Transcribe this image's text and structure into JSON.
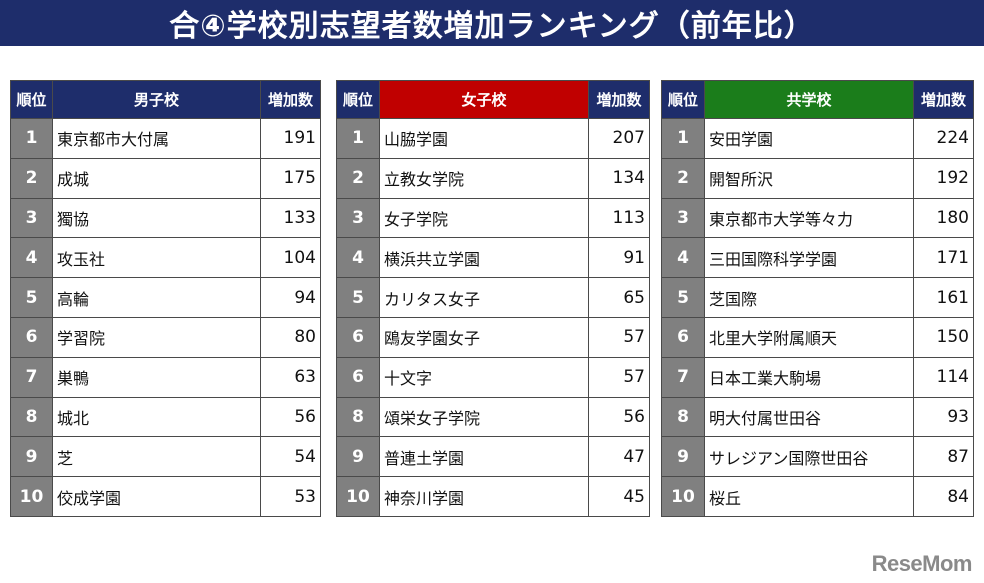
{
  "title": "合④学校別志望者数増加ランキング（前年比）",
  "header": {
    "rank": "順位",
    "increase": "増加数"
  },
  "colors": {
    "title_bg": "#1e2d6b",
    "boys": "#1e2d6b",
    "girls": "#c00000",
    "coed": "#1b7d1b",
    "rank_cell": "#808080"
  },
  "tables": {
    "boys": {
      "category": "男子校",
      "rows": [
        {
          "rank": "1",
          "school": "東京都市大付属",
          "increase": "191"
        },
        {
          "rank": "2",
          "school": "成城",
          "increase": "175"
        },
        {
          "rank": "3",
          "school": "獨協",
          "increase": "133"
        },
        {
          "rank": "4",
          "school": "攻玉社",
          "increase": "104"
        },
        {
          "rank": "5",
          "school": "高輪",
          "increase": "94"
        },
        {
          "rank": "6",
          "school": "学習院",
          "increase": "80"
        },
        {
          "rank": "7",
          "school": "巣鴨",
          "increase": "63"
        },
        {
          "rank": "8",
          "school": "城北",
          "increase": "56"
        },
        {
          "rank": "9",
          "school": "芝",
          "increase": "54"
        },
        {
          "rank": "10",
          "school": "佼成学園",
          "increase": "53"
        }
      ]
    },
    "girls": {
      "category": "女子校",
      "rows": [
        {
          "rank": "1",
          "school": "山脇学園",
          "increase": "207"
        },
        {
          "rank": "2",
          "school": "立教女学院",
          "increase": "134"
        },
        {
          "rank": "3",
          "school": "女子学院",
          "increase": "113"
        },
        {
          "rank": "4",
          "school": "横浜共立学園",
          "increase": "91"
        },
        {
          "rank": "5",
          "school": "カリタス女子",
          "increase": "65"
        },
        {
          "rank": "6",
          "school": "鴎友学園女子",
          "increase": "57"
        },
        {
          "rank": "6",
          "school": "十文字",
          "increase": "57"
        },
        {
          "rank": "8",
          "school": "頌栄女子学院",
          "increase": "56"
        },
        {
          "rank": "9",
          "school": "普連土学園",
          "increase": "47"
        },
        {
          "rank": "10",
          "school": "神奈川学園",
          "increase": "45"
        }
      ]
    },
    "coed": {
      "category": "共学校",
      "rows": [
        {
          "rank": "1",
          "school": "安田学園",
          "increase": "224"
        },
        {
          "rank": "2",
          "school": "開智所沢",
          "increase": "192"
        },
        {
          "rank": "3",
          "school": "東京都市大学等々力",
          "increase": "180"
        },
        {
          "rank": "4",
          "school": "三田国際科学学園",
          "increase": "171"
        },
        {
          "rank": "5",
          "school": "芝国際",
          "increase": "161"
        },
        {
          "rank": "6",
          "school": "北里大学附属順天",
          "increase": "150"
        },
        {
          "rank": "7",
          "school": "日本工業大駒場",
          "increase": "114"
        },
        {
          "rank": "8",
          "school": "明大付属世田谷",
          "increase": "93"
        },
        {
          "rank": "9",
          "school": "サレジアン国際世田谷",
          "increase": "87"
        },
        {
          "rank": "10",
          "school": "桜丘",
          "increase": "84"
        }
      ]
    }
  },
  "watermark": "ReseMom"
}
